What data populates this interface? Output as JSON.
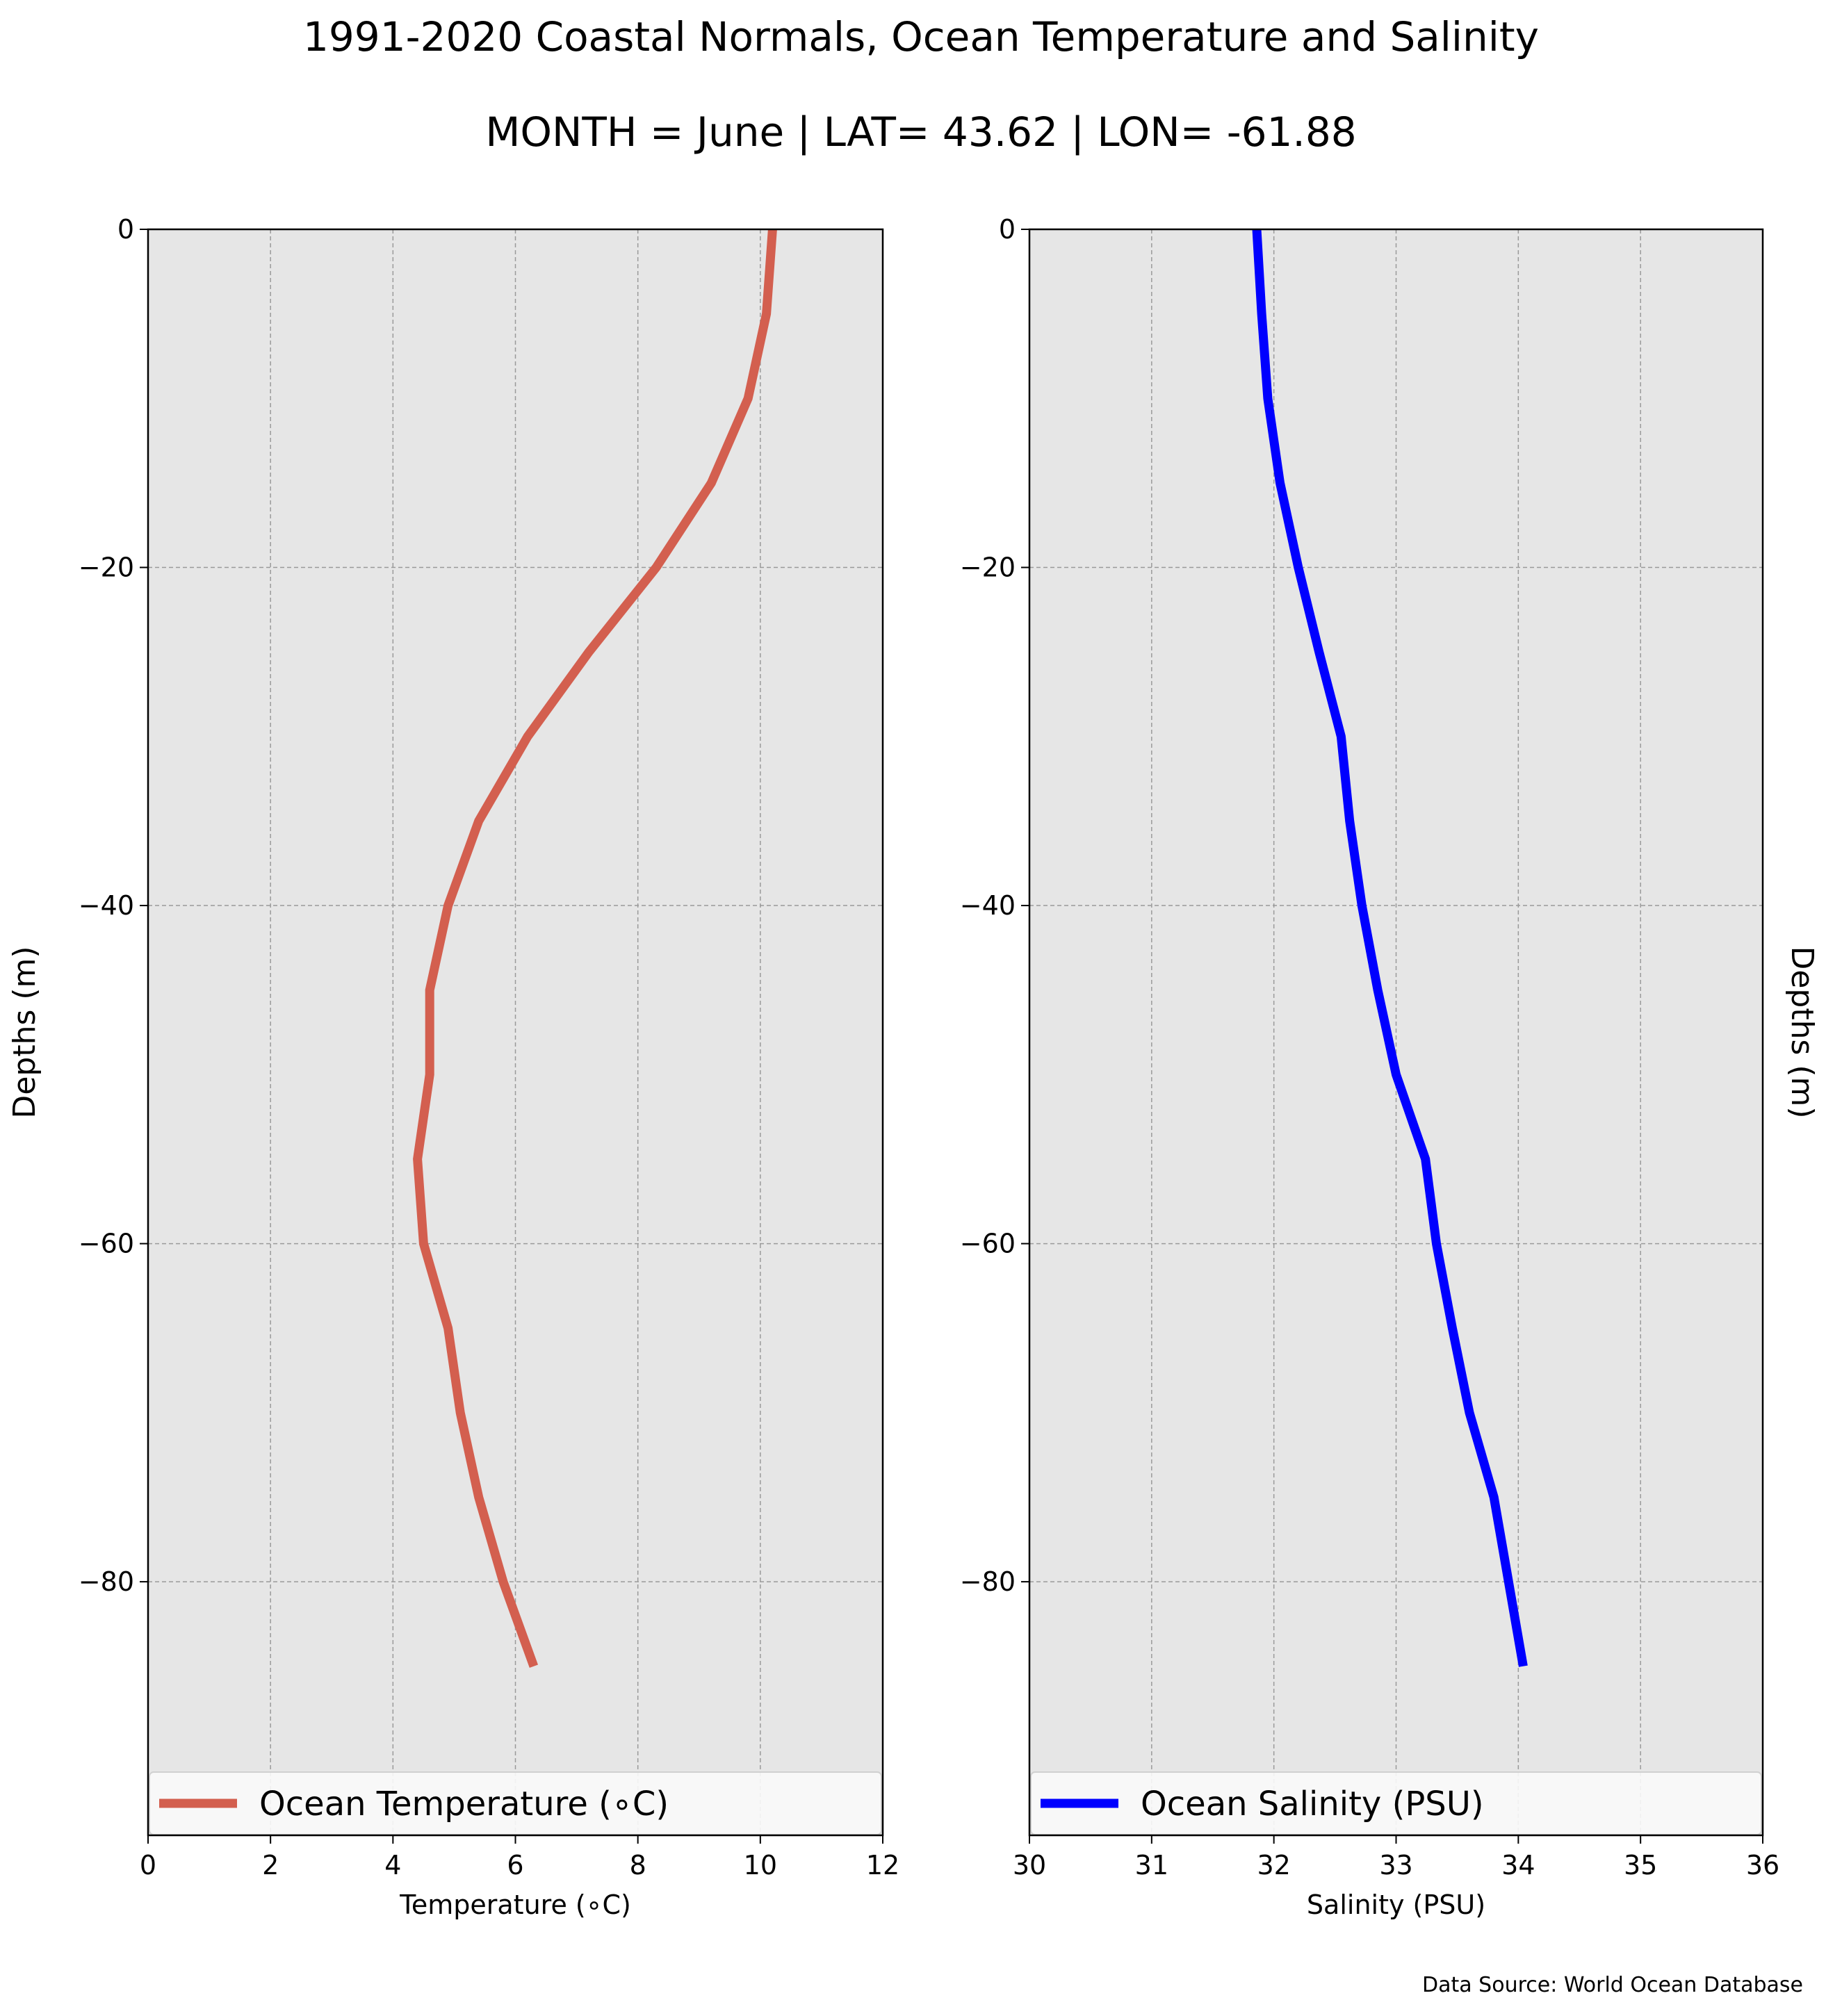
{
  "figure": {
    "title": "1991-2020 Coastal Normals, Ocean Temperature and Salinity",
    "subtitle": "MONTH = June | LAT= 43.62 | LON= -61.88",
    "source": "Data Source: World Ocean Database"
  },
  "colors": {
    "panel_background": "#e6e6e6",
    "grid": "#9a9a9a",
    "temperature_line": "#d35f4f",
    "salinity_line": "#0000ff"
  },
  "chart_data": [
    {
      "type": "line",
      "xlabel": "Temperature (∘C)",
      "ylabel": "Depths (m)",
      "xlim": [
        0,
        12
      ],
      "ylim": [
        -95,
        0
      ],
      "xticks": [
        "0",
        "2",
        "4",
        "6",
        "8",
        "10",
        "12"
      ],
      "yticks": [
        "0",
        "−20",
        "−40",
        "−60",
        "−80"
      ],
      "grid": true,
      "legend_position": "bottom",
      "series": [
        {
          "name": "Ocean Temperature (∘C)",
          "color": "#d35f4f",
          "x": [
            10.2,
            10.1,
            9.8,
            9.2,
            8.3,
            7.2,
            6.2,
            5.4,
            4.9,
            4.6,
            4.6,
            4.4,
            4.5,
            4.9,
            5.1,
            5.4,
            5.8,
            6.3
          ],
          "y": [
            0,
            -5,
            -10,
            -15,
            -20,
            -25,
            -30,
            -35,
            -40,
            -45,
            -50,
            -55,
            -60,
            -65,
            -70,
            -75,
            -80,
            -85
          ]
        }
      ]
    },
    {
      "type": "line",
      "xlabel": "Salinity (PSU)",
      "ylabel": "Depths (m)",
      "xlim": [
        30,
        36
      ],
      "ylim": [
        -95,
        0
      ],
      "xticks": [
        "30",
        "31",
        "32",
        "33",
        "34",
        "35",
        "36"
      ],
      "yticks": [
        "0",
        "−20",
        "−40",
        "−60",
        "−80"
      ],
      "grid": true,
      "legend_position": "bottom",
      "series": [
        {
          "name": "Ocean Salinity (PSU)",
          "color": "#0000ff",
          "x": [
            31.86,
            31.9,
            31.95,
            32.05,
            32.2,
            32.37,
            32.55,
            32.62,
            32.72,
            32.85,
            33.0,
            33.24,
            33.33,
            33.46,
            33.6,
            33.8,
            33.92,
            34.04
          ],
          "y": [
            0,
            -5,
            -10,
            -15,
            -20,
            -25,
            -30,
            -35,
            -40,
            -45,
            -50,
            -55,
            -60,
            -65,
            -70,
            -75,
            -80,
            -85
          ]
        }
      ]
    }
  ]
}
